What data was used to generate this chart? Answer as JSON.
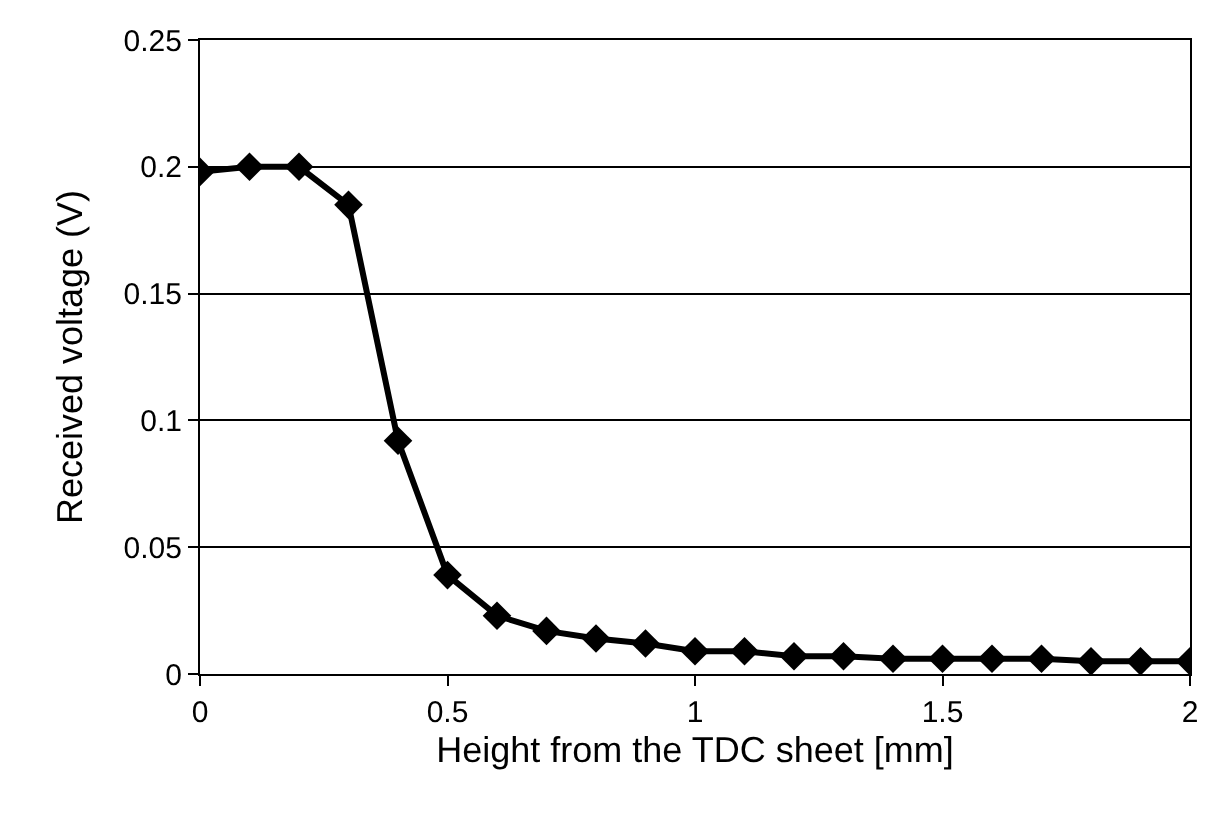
{
  "chart_data": {
    "type": "line",
    "xlabel": "Height from the TDC sheet [mm]",
    "ylabel": "Received voltage (V)",
    "x": [
      0,
      0.1,
      0.2,
      0.3,
      0.4,
      0.5,
      0.6,
      0.7,
      0.8,
      0.9,
      1.0,
      1.1,
      1.2,
      1.3,
      1.4,
      1.5,
      1.6,
      1.7,
      1.8,
      1.9,
      2.0
    ],
    "series": [
      {
        "color": "#000000",
        "values": [
          0.198,
          0.2,
          0.2,
          0.185,
          0.092,
          0.039,
          0.023,
          0.017,
          0.014,
          0.012,
          0.009,
          0.009,
          0.007,
          0.007,
          0.006,
          0.006,
          0.006,
          0.006,
          0.005,
          0.005,
          0.005
        ]
      }
    ],
    "xlim": [
      0,
      2
    ],
    "xticks": [
      0,
      0.5,
      1,
      1.5,
      2
    ],
    "ylim": [
      0,
      0.25
    ],
    "yticks": [
      0,
      0.05,
      0.1,
      0.15,
      0.2,
      0.25
    ],
    "grid": "y",
    "marker": "diamond",
    "line_style": "solid",
    "legend": false
  }
}
